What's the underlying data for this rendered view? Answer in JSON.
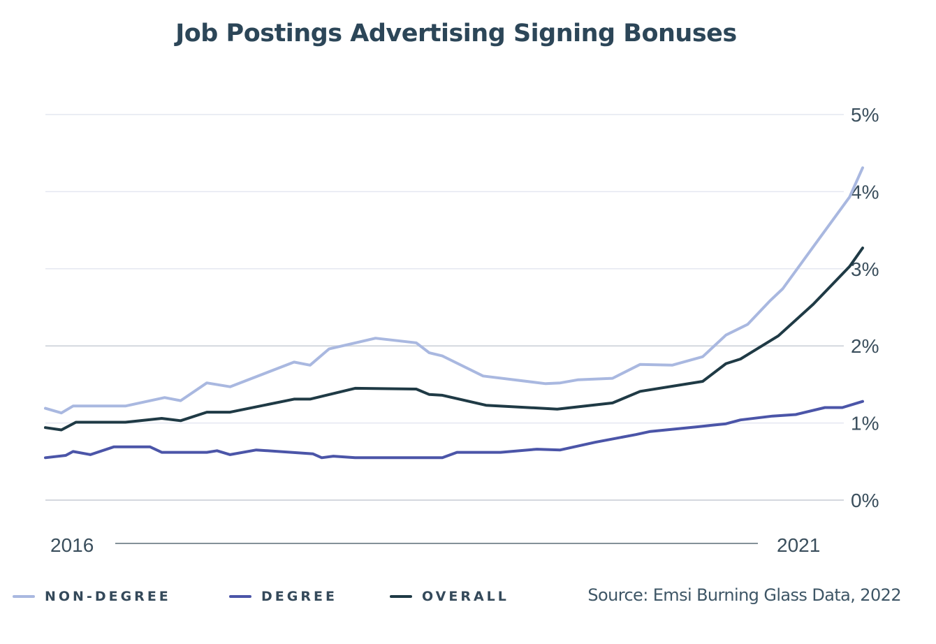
{
  "chart_data": {
    "type": "line",
    "title": "Job Postings Advertising Signing Bonuses",
    "xlabel": "",
    "ylabel": "",
    "x_tick_labels": [
      "2016",
      "2021"
    ],
    "x_ticks": [
      2016,
      2021
    ],
    "xlim": [
      2015.82,
      2021.44
    ],
    "ylim": [
      0,
      5
    ],
    "y_ticks": [
      0,
      1,
      2,
      3,
      4,
      5
    ],
    "y_tick_labels": [
      "0%",
      "1%",
      "2%",
      "3%",
      "4%",
      "5%"
    ],
    "y_axis_side": "right",
    "grid": true,
    "legend_position": "bottom-left",
    "series": [
      {
        "name": "NON-DEGREE",
        "color": "#a9b8e0",
        "points": [
          [
            2015.82,
            1.19
          ],
          [
            2015.93,
            1.13
          ],
          [
            2016.01,
            1.22
          ],
          [
            2016.18,
            1.22
          ],
          [
            2016.37,
            1.22
          ],
          [
            2016.64,
            1.33
          ],
          [
            2016.75,
            1.29
          ],
          [
            2016.93,
            1.52
          ],
          [
            2017.09,
            1.47
          ],
          [
            2017.53,
            1.79
          ],
          [
            2017.64,
            1.75
          ],
          [
            2017.77,
            1.96
          ],
          [
            2018.09,
            2.1
          ],
          [
            2018.37,
            2.04
          ],
          [
            2018.46,
            1.91
          ],
          [
            2018.55,
            1.87
          ],
          [
            2018.83,
            1.61
          ],
          [
            2019.26,
            1.51
          ],
          [
            2019.36,
            1.52
          ],
          [
            2019.48,
            1.56
          ],
          [
            2019.72,
            1.58
          ],
          [
            2019.91,
            1.76
          ],
          [
            2020.13,
            1.75
          ],
          [
            2020.34,
            1.86
          ],
          [
            2020.5,
            2.14
          ],
          [
            2020.65,
            2.28
          ],
          [
            2020.8,
            2.58
          ],
          [
            2020.89,
            2.74
          ],
          [
            2021.11,
            3.31
          ],
          [
            2021.35,
            3.93
          ],
          [
            2021.44,
            4.31
          ]
        ]
      },
      {
        "name": "DEGREE",
        "color": "#4b55a8",
        "points": [
          [
            2015.82,
            0.55
          ],
          [
            2015.96,
            0.58
          ],
          [
            2016.01,
            0.63
          ],
          [
            2016.13,
            0.59
          ],
          [
            2016.29,
            0.69
          ],
          [
            2016.42,
            0.69
          ],
          [
            2016.54,
            0.69
          ],
          [
            2016.62,
            0.62
          ],
          [
            2016.93,
            0.62
          ],
          [
            2017.0,
            0.64
          ],
          [
            2017.09,
            0.59
          ],
          [
            2017.27,
            0.65
          ],
          [
            2017.66,
            0.6
          ],
          [
            2017.72,
            0.55
          ],
          [
            2017.8,
            0.57
          ],
          [
            2017.95,
            0.55
          ],
          [
            2018.55,
            0.55
          ],
          [
            2018.65,
            0.62
          ],
          [
            2018.95,
            0.62
          ],
          [
            2019.2,
            0.66
          ],
          [
            2019.36,
            0.65
          ],
          [
            2019.6,
            0.75
          ],
          [
            2019.88,
            0.85
          ],
          [
            2019.98,
            0.89
          ],
          [
            2020.3,
            0.95
          ],
          [
            2020.5,
            0.99
          ],
          [
            2020.6,
            1.04
          ],
          [
            2020.82,
            1.09
          ],
          [
            2020.98,
            1.11
          ],
          [
            2021.18,
            1.2
          ],
          [
            2021.3,
            1.2
          ],
          [
            2021.44,
            1.28
          ]
        ]
      },
      {
        "name": "OVERALL",
        "color": "#1f3a45",
        "points": [
          [
            2015.82,
            0.94
          ],
          [
            2015.93,
            0.91
          ],
          [
            2016.03,
            1.01
          ],
          [
            2016.37,
            1.01
          ],
          [
            2016.62,
            1.06
          ],
          [
            2016.75,
            1.03
          ],
          [
            2016.93,
            1.14
          ],
          [
            2017.09,
            1.14
          ],
          [
            2017.53,
            1.31
          ],
          [
            2017.64,
            1.31
          ],
          [
            2017.95,
            1.45
          ],
          [
            2018.37,
            1.44
          ],
          [
            2018.46,
            1.37
          ],
          [
            2018.55,
            1.36
          ],
          [
            2018.85,
            1.23
          ],
          [
            2019.34,
            1.18
          ],
          [
            2019.72,
            1.26
          ],
          [
            2019.91,
            1.41
          ],
          [
            2020.34,
            1.54
          ],
          [
            2020.5,
            1.77
          ],
          [
            2020.6,
            1.83
          ],
          [
            2020.86,
            2.13
          ],
          [
            2021.1,
            2.54
          ],
          [
            2021.35,
            3.03
          ],
          [
            2021.44,
            3.27
          ]
        ]
      }
    ],
    "source": "Source: Emsi Burning Glass Data, 2022"
  }
}
